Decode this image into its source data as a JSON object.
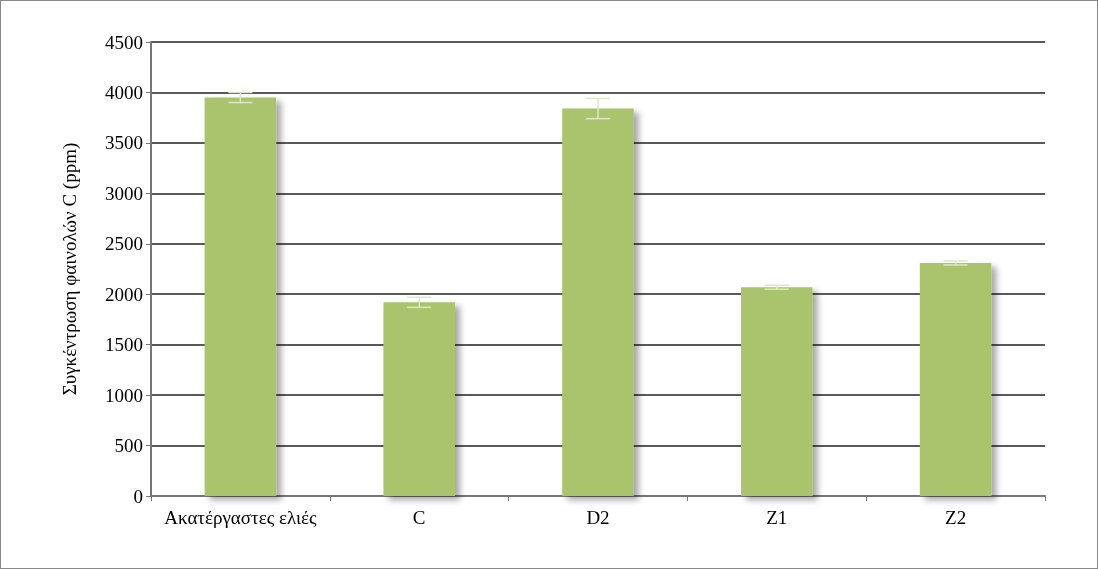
{
  "chart_data": {
    "type": "bar",
    "ylabel": "Συγκέντρωση φαινολών C (ppm)",
    "categories": [
      "Ακατέργαστες ελιές",
      "C",
      "D2",
      "Z1",
      "Z2"
    ],
    "values": [
      3950,
      1920,
      3840,
      2070,
      2310
    ],
    "errors": [
      50,
      50,
      100,
      20,
      20
    ],
    "color": "#a9c46c",
    "ylim": [
      0,
      4500
    ],
    "yticks": [
      0,
      500,
      1000,
      1500,
      2000,
      2500,
      3000,
      3500,
      4000,
      4500
    ],
    "grid": "y"
  }
}
